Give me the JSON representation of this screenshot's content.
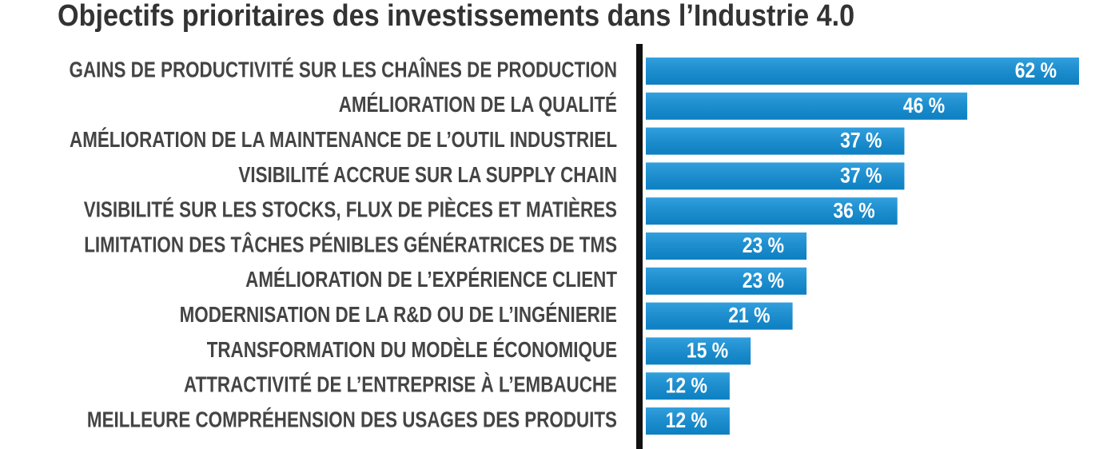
{
  "chart_data": {
    "type": "hbar",
    "title": "Objectifs prioritaires des investissements dans l’Industrie 4.0",
    "categories": [
      "GAINS DE PRODUCTIVITÉ SUR LES CHAÎNES DE PRODUCTION",
      "AMÉLIORATION DE LA QUALITÉ",
      "AMÉLIORATION DE LA MAINTENANCE DE L’OUTIL INDUSTRIEL",
      "VISIBILITÉ ACCRUE SUR LA SUPPLY CHAIN",
      "VISIBILITÉ SUR LES STOCKS, FLUX DE PIÈCES ET MATIÈRES",
      "LIMITATION DES TÂCHES PÉNIBLES GÉNÉRATRICES DE TMS",
      "AMÉLIORATION DE L’EXPÉRIENCE CLIENT",
      "MODERNISATION DE LA R&D OU DE L’INGÉNIERIE",
      "TRANSFORMATION DU MODÈLE ÉCONOMIQUE",
      "ATTRACTIVITÉ DE L’ENTREPRISE À L’EMBAUCHE",
      "MEILLEURE COMPRÉHENSION DES USAGES DES PRODUITS"
    ],
    "values": [
      62,
      46,
      37,
      37,
      36,
      23,
      23,
      21,
      15,
      12,
      12
    ],
    "value_labels": [
      "62 %",
      "46 %",
      "37 %",
      "37 %",
      "36 %",
      "23 %",
      "23 %",
      "21 %",
      "15 %",
      "12 %",
      "12 %"
    ],
    "color": "#0f8fd8"
  }
}
